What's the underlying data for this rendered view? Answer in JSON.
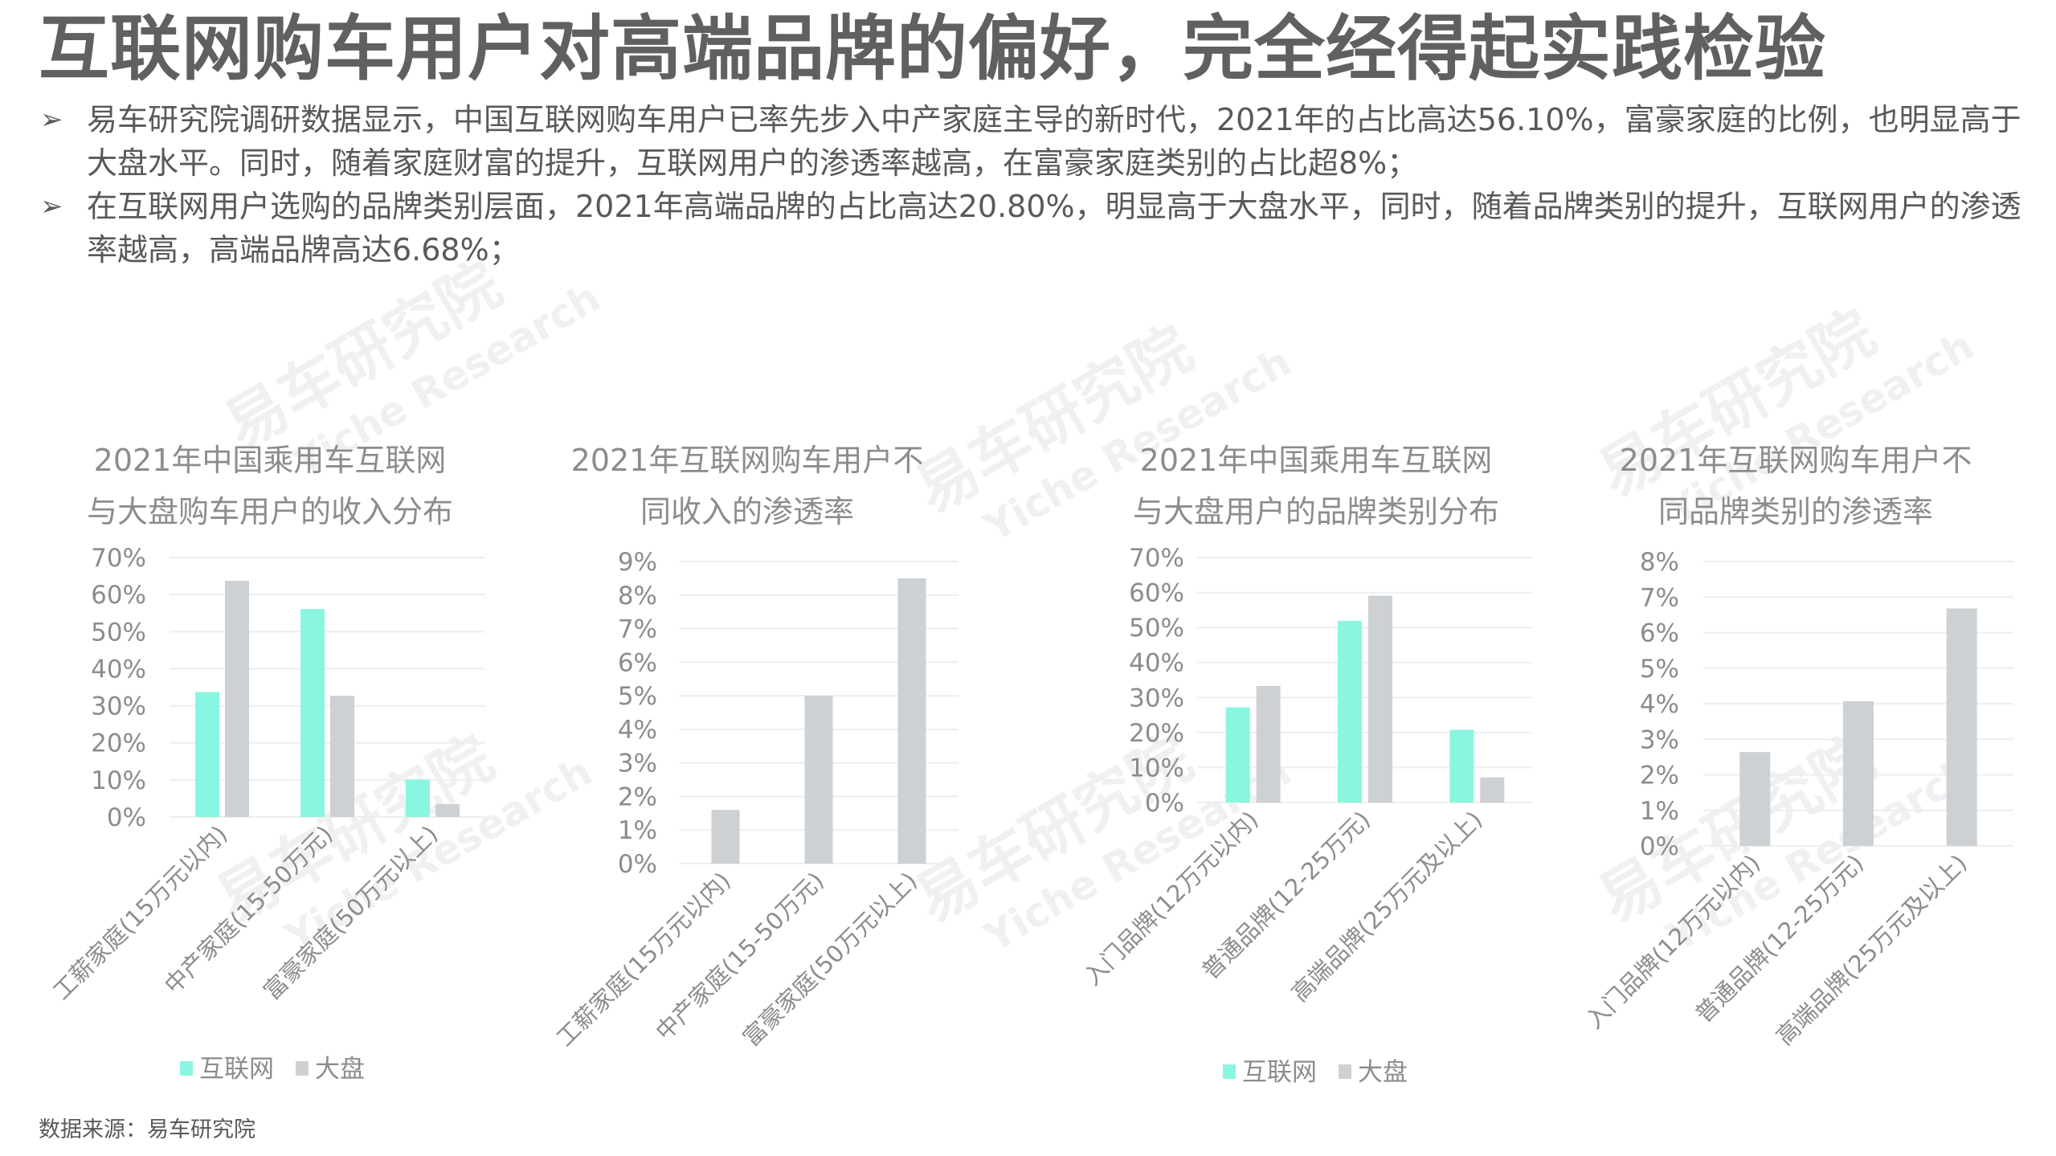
{
  "header": {
    "title": "互联网购车用户对高端品牌的偏好，完全经得起实践检验"
  },
  "bullets": [
    {
      "icon": "arrow-bullet-icon",
      "glyph": "➢",
      "text": "易车研究院调研数据显示，中国互联网购车用户已率先步入中产家庭主导的新时代，2021年的占比高达56.10%，富豪家庭的比例，也明显高于大盘水平。同时，随着家庭财富的提升，互联网用户的渗透率越高，在富豪家庭类别的占比超8%；"
    },
    {
      "icon": "arrow-bullet-icon",
      "glyph": "➢",
      "text": "在互联网用户选购的品牌类别层面，2021年高端品牌的占比高达20.80%，明显高于大盘水平，同时，随着品牌类别的提升，互联网用户的渗透率越高，高端品牌高达6.68%；"
    }
  ],
  "watermark": {
    "cn": "易车研究院",
    "en": "Yiche Research"
  },
  "colors": {
    "internet": "#8af5e1",
    "market": "#cdd1d4",
    "grid": "#eceeef",
    "text": "#8c8c8c"
  },
  "footer": {
    "source": "数据来源：易车研究院"
  },
  "charts": {
    "c1": {
      "title_l1": "2021年中国乘用车互联网",
      "title_l2": "与大盘购车用户的收入分布",
      "ticks": [
        "0%",
        "10%",
        "20%",
        "30%",
        "40%",
        "50%",
        "60%",
        "70%"
      ],
      "categories": [
        "工薪家庭(15万元以内)",
        "中产家庭(15-50万元)",
        "富豪家庭(50万元以上)"
      ],
      "legend": [
        "互联网",
        "大盘"
      ]
    },
    "c2": {
      "title_l1": "2021年互联网购车用户不",
      "title_l2": "同收入的渗透率",
      "ticks": [
        "0%",
        "1%",
        "2%",
        "3%",
        "4%",
        "5%",
        "6%",
        "7%",
        "8%",
        "9%"
      ],
      "categories": [
        "工薪家庭(15万元以内)",
        "中产家庭(15-50万元)",
        "富豪家庭(50万元以上)"
      ]
    },
    "c3": {
      "title_l1": "2021年中国乘用车互联网",
      "title_l2": "与大盘用户的品牌类别分布",
      "ticks": [
        "0%",
        "10%",
        "20%",
        "30%",
        "40%",
        "50%",
        "60%",
        "70%"
      ],
      "categories": [
        "入门品牌(12万元以内)",
        "普通品牌(12-25万元)",
        "高端品牌(25万元及以上)"
      ],
      "legend": [
        "互联网",
        "大盘"
      ]
    },
    "c4": {
      "title_l1": "2021年互联网购车用户不",
      "title_l2": "同品牌类别的渗透率",
      "ticks": [
        "0%",
        "1%",
        "2%",
        "3%",
        "4%",
        "5%",
        "6%",
        "7%",
        "8%"
      ],
      "categories": [
        "入门品牌(12万元以内)",
        "普通品牌(12-25万元)",
        "高端品牌(25万元及以上)"
      ]
    }
  },
  "chart_data": [
    {
      "type": "bar",
      "title": "2021年中国乘用车互联网与大盘购车用户的收入分布",
      "categories": [
        "工薪家庭(15万元以内)",
        "中产家庭(15-50万元)",
        "富豪家庭(50万元以上)"
      ],
      "series": [
        {
          "name": "互联网",
          "values": [
            33.7,
            56.1,
            10.1
          ]
        },
        {
          "name": "大盘",
          "values": [
            63.7,
            32.7,
            3.5
          ]
        }
      ],
      "xlabel": "",
      "ylabel": "",
      "ylim": [
        0,
        70
      ],
      "yticks_step": 10,
      "unit": "%",
      "grid": true,
      "legend_position": "bottom"
    },
    {
      "type": "bar",
      "title": "2021年互联网购车用户不同收入的渗透率",
      "categories": [
        "工薪家庭(15万元以内)",
        "中产家庭(15-50万元)",
        "富豪家庭(50万元以上)"
      ],
      "series": [
        {
          "name": "渗透率",
          "values": [
            1.6,
            5.0,
            8.5
          ]
        }
      ],
      "xlabel": "",
      "ylabel": "",
      "ylim": [
        0,
        9
      ],
      "yticks_step": 1,
      "unit": "%",
      "grid": true,
      "legend_position": "none"
    },
    {
      "type": "bar",
      "title": "2021年中国乘用车互联网与大盘用户的品牌类别分布",
      "categories": [
        "入门品牌(12万元以内)",
        "普通品牌(12-25万元)",
        "高端品牌(25万元及以上)"
      ],
      "series": [
        {
          "name": "互联网",
          "values": [
            27.2,
            51.9,
            20.8
          ]
        },
        {
          "name": "大盘",
          "values": [
            33.3,
            59.1,
            7.2
          ]
        }
      ],
      "xlabel": "",
      "ylabel": "",
      "ylim": [
        0,
        70
      ],
      "yticks_step": 10,
      "unit": "%",
      "grid": true,
      "legend_position": "bottom"
    },
    {
      "type": "bar",
      "title": "2021年互联网购车用户不同品牌类别的渗透率",
      "categories": [
        "入门品牌(12万元以内)",
        "普通品牌(12-25万元)",
        "高端品牌(25万元及以上)"
      ],
      "series": [
        {
          "name": "渗透率",
          "values": [
            2.64,
            4.07,
            6.68
          ]
        }
      ],
      "xlabel": "",
      "ylabel": "",
      "ylim": [
        0,
        8
      ],
      "yticks_step": 1,
      "unit": "%",
      "grid": true,
      "legend_position": "none"
    }
  ]
}
